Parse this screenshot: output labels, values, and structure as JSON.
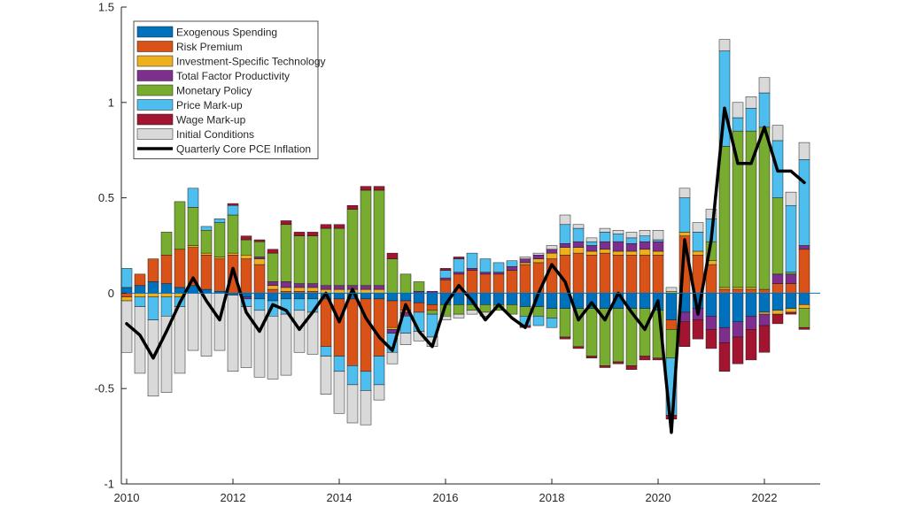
{
  "chart_data": {
    "type": "bar",
    "subtype": "stacked-bar-with-line",
    "title": "",
    "xlabel": "",
    "ylabel": "",
    "xlim": [
      2009.9,
      2023.05
    ],
    "ylim": [
      -1,
      1.5
    ],
    "x_ticks": [
      2010,
      2012,
      2014,
      2016,
      2018,
      2020,
      2022
    ],
    "y_ticks": [
      -1,
      -0.5,
      0,
      0.5,
      1,
      1.5
    ],
    "y_tick_labels": [
      "-1",
      "-0.5",
      "0",
      "0.5",
      "1",
      "1.5"
    ],
    "grid": false,
    "legend_position": "top-left",
    "x": [
      2010.0,
      2010.25,
      2010.5,
      2010.75,
      2011.0,
      2011.25,
      2011.5,
      2011.75,
      2012.0,
      2012.25,
      2012.5,
      2012.75,
      2013.0,
      2013.25,
      2013.5,
      2013.75,
      2014.0,
      2014.25,
      2014.5,
      2014.75,
      2015.0,
      2015.25,
      2015.5,
      2015.75,
      2016.0,
      2016.25,
      2016.5,
      2016.75,
      2017.0,
      2017.25,
      2017.5,
      2017.75,
      2018.0,
      2018.25,
      2018.5,
      2018.75,
      2019.0,
      2019.25,
      2019.5,
      2019.75,
      2020.0,
      2020.25,
      2020.5,
      2020.75,
      2021.0,
      2021.25,
      2021.5,
      2021.75,
      2022.0,
      2022.25,
      2022.5,
      2022.75
    ],
    "series": [
      {
        "name": "Exogenous Spending",
        "color": "#0072BD",
        "values": [
          0.03,
          0.04,
          0.06,
          0.05,
          0.03,
          0.04,
          0.02,
          0.01,
          -0.01,
          -0.02,
          -0.03,
          -0.04,
          -0.03,
          -0.03,
          -0.03,
          -0.03,
          -0.03,
          -0.03,
          -0.03,
          -0.03,
          -0.04,
          -0.04,
          -0.05,
          -0.06,
          -0.06,
          -0.06,
          -0.06,
          -0.06,
          -0.06,
          -0.06,
          -0.07,
          -0.07,
          -0.08,
          -0.08,
          -0.08,
          -0.08,
          -0.08,
          -0.08,
          -0.08,
          -0.08,
          -0.09,
          -0.14,
          -0.1,
          -0.08,
          -0.12,
          -0.18,
          -0.15,
          -0.12,
          -0.1,
          -0.09,
          -0.08,
          -0.06
        ]
      },
      {
        "name": "Risk Premium",
        "color": "#D95319",
        "values": [
          -0.02,
          0.06,
          0.12,
          0.15,
          0.2,
          0.2,
          0.18,
          0.17,
          0.2,
          0.18,
          0.15,
          0.02,
          0.01,
          0.01,
          0.01,
          -0.25,
          -0.3,
          -0.35,
          -0.38,
          -0.3,
          -0.14,
          -0.05,
          -0.05,
          -0.03,
          0.07,
          0.1,
          0.12,
          0.1,
          0.1,
          0.12,
          0.15,
          0.16,
          0.18,
          0.2,
          0.21,
          0.2,
          0.21,
          0.2,
          0.2,
          0.2,
          0.2,
          -0.05,
          0.3,
          0.2,
          0.15,
          0.02,
          0.02,
          0.02,
          0.02,
          0.05,
          0.05,
          0.23
        ]
      },
      {
        "name": "Investment-Specific Technology",
        "color": "#EDB120",
        "values": [
          -0.02,
          -0.02,
          -0.02,
          -0.02,
          -0.02,
          0.01,
          0.01,
          0.01,
          0.01,
          0.02,
          0.03,
          0.02,
          0.02,
          0.02,
          0.02,
          0.02,
          0.02,
          0.02,
          0.02,
          0.02,
          -0.01,
          -0.01,
          0,
          0,
          0,
          0,
          0,
          0,
          0,
          0,
          0.01,
          0.02,
          0.03,
          0.04,
          0.03,
          0.02,
          0.02,
          0.02,
          0.02,
          0.03,
          0.02,
          0.01,
          0.02,
          0.02,
          0.02,
          0.01,
          0.01,
          0.01,
          -0.01,
          -0.02,
          -0.02,
          -0.02
        ]
      },
      {
        "name": "Total Factor Productivity",
        "color": "#7E2F8E",
        "values": [
          0,
          0,
          0,
          0,
          0,
          0,
          0,
          0,
          0,
          -0.01,
          0.01,
          0.02,
          0.03,
          0.02,
          0.02,
          0.02,
          0.02,
          0.02,
          0.02,
          0.02,
          -0.02,
          -0.02,
          0.01,
          0.01,
          0.01,
          0.01,
          0.01,
          0.01,
          0.01,
          0.02,
          0.02,
          0.02,
          0.02,
          0.02,
          0.03,
          0.03,
          0.04,
          0.05,
          0.04,
          0.04,
          0.05,
          0,
          -0.05,
          -0.06,
          -0.07,
          -0.08,
          -0.08,
          -0.07,
          -0.06,
          0.05,
          0.05,
          0.02
        ]
      },
      {
        "name": "Monetary Policy",
        "color": "#77AC30",
        "values": [
          0,
          0,
          0,
          0.12,
          0.25,
          0.2,
          0.12,
          0.18,
          0.2,
          0.08,
          0.08,
          0.15,
          0.3,
          0.25,
          0.25,
          0.3,
          0.3,
          0.4,
          0.5,
          0.5,
          0.18,
          0.1,
          0.05,
          -0.02,
          -0.06,
          -0.05,
          -0.03,
          -0.04,
          -0.03,
          -0.05,
          -0.05,
          -0.05,
          -0.05,
          -0.15,
          -0.2,
          -0.25,
          -0.3,
          -0.28,
          -0.3,
          -0.25,
          -0.25,
          -0.15,
          0,
          0,
          0.1,
          0.74,
          0.82,
          0.82,
          0.85,
          0.4,
          0.01,
          -0.1
        ]
      },
      {
        "name": "Price Mark-up",
        "color": "#4DBEEE",
        "values": [
          0.1,
          -0.05,
          -0.12,
          -0.1,
          -0.05,
          0.1,
          0.02,
          0.02,
          0.05,
          -0.04,
          -0.06,
          -0.08,
          -0.08,
          -0.06,
          -0.07,
          -0.05,
          -0.08,
          -0.1,
          -0.1,
          -0.15,
          -0.1,
          -0.09,
          -0.1,
          -0.12,
          0.04,
          0.07,
          0.08,
          0.07,
          0.05,
          0.03,
          -0.05,
          -0.05,
          -0.05,
          0.1,
          0.07,
          0.02,
          0.05,
          0.04,
          0.03,
          0.03,
          0.01,
          -0.3,
          0.18,
          0.1,
          0.12,
          0.5,
          0.07,
          0.12,
          0.18,
          0.3,
          0.35,
          0.45
        ]
      },
      {
        "name": "Wage Mark-up",
        "color": "#A2142F",
        "values": [
          0,
          0,
          0,
          0,
          0,
          0,
          0,
          0,
          0.01,
          0.02,
          0.01,
          0.02,
          0.02,
          0.02,
          0.02,
          0.02,
          0.02,
          0.02,
          0.02,
          0.02,
          0.03,
          0,
          0,
          0,
          0.01,
          0.01,
          0,
          0,
          0,
          0,
          -0.01,
          0,
          0,
          -0.01,
          -0.01,
          -0.01,
          -0.01,
          -0.01,
          -0.02,
          -0.02,
          -0.01,
          -0.02,
          -0.13,
          -0.1,
          -0.1,
          -0.15,
          -0.14,
          -0.16,
          -0.14,
          -0.05,
          -0.01,
          -0.01
        ]
      },
      {
        "name": "Initial Conditions",
        "color": "#D9D9D9",
        "values": [
          -0.27,
          -0.35,
          -0.4,
          -0.4,
          -0.35,
          -0.3,
          -0.33,
          -0.3,
          -0.4,
          -0.32,
          -0.35,
          -0.33,
          -0.32,
          -0.22,
          -0.22,
          -0.2,
          -0.22,
          -0.2,
          -0.18,
          -0.08,
          -0.06,
          -0.06,
          -0.05,
          -0.05,
          -0.02,
          -0.02,
          -0.02,
          -0.02,
          0,
          0,
          0.01,
          0.01,
          0.02,
          0.05,
          0.02,
          0.02,
          0.02,
          0.02,
          0.03,
          0.03,
          0.05,
          0.02,
          0.05,
          0.05,
          0.05,
          0.06,
          0.08,
          0.06,
          0.08,
          0.08,
          0.07,
          0.09
        ]
      }
    ],
    "line": {
      "name": "Quarterly Core PCE Inflation",
      "color": "#000000",
      "values": [
        -0.16,
        -0.22,
        -0.34,
        -0.2,
        -0.05,
        0.08,
        -0.04,
        -0.14,
        0.13,
        -0.1,
        -0.2,
        -0.06,
        -0.09,
        -0.19,
        -0.1,
        0,
        -0.15,
        0.02,
        -0.13,
        -0.23,
        -0.3,
        -0.06,
        -0.2,
        -0.28,
        -0.06,
        0.04,
        -0.04,
        -0.14,
        -0.06,
        -0.13,
        -0.18,
        0,
        0.15,
        0.06,
        -0.14,
        -0.05,
        -0.14,
        0,
        -0.1,
        -0.19,
        -0.04,
        -0.73,
        0.28,
        -0.11,
        0.28,
        0.97,
        0.68,
        0.68,
        0.87,
        0.64,
        0.64,
        0.58
      ]
    }
  }
}
